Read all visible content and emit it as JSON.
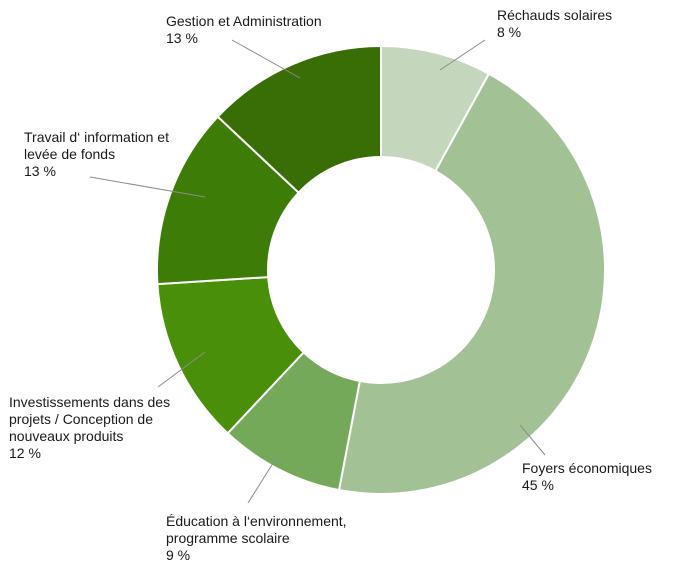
{
  "chart_data": {
    "type": "pie",
    "style": "donut",
    "title": "",
    "slices": [
      {
        "label_lines": [
          "Réchauds solaires"
        ],
        "value": 8,
        "value_text": "8 %",
        "color": "#c4d6bc"
      },
      {
        "label_lines": [
          "Foyers économiques"
        ],
        "value": 45,
        "value_text": "45 %",
        "color": "#a2c296"
      },
      {
        "label_lines": [
          "Éducation à l‘environnement,",
          "programme scolaire"
        ],
        "value": 9,
        "value_text": "9 %",
        "color": "#74a95a"
      },
      {
        "label_lines": [
          "Investissements dans des",
          "projets / Conception de",
          "nouveaux produits"
        ],
        "value": 12,
        "value_text": "12 %",
        "color": "#4a8f0a"
      },
      {
        "label_lines": [
          "Travail d‘ information et",
          "levée de fonds"
        ],
        "value": 13,
        "value_text": "13 %",
        "color": "#3e7c08"
      },
      {
        "label_lines": [
          "Gestion et Administration"
        ],
        "value": 13,
        "value_text": "13 %",
        "color": "#386e05"
      }
    ]
  }
}
